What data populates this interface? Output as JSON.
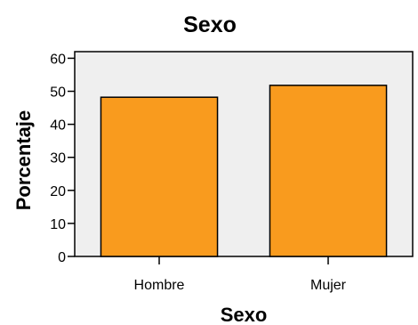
{
  "chart_data": {
    "type": "bar",
    "title": "Sexo",
    "xlabel": "Sexo",
    "ylabel": "Porcentaje",
    "categories": [
      "Hombre",
      "Mujer"
    ],
    "values": [
      48.2,
      51.8
    ],
    "ylim": [
      0,
      62
    ],
    "yticks": [
      0,
      10,
      20,
      30,
      40,
      50,
      60
    ],
    "bar_color": "#f99b1e",
    "plot_background": "#efefef",
    "grid": false,
    "legend": "none"
  }
}
